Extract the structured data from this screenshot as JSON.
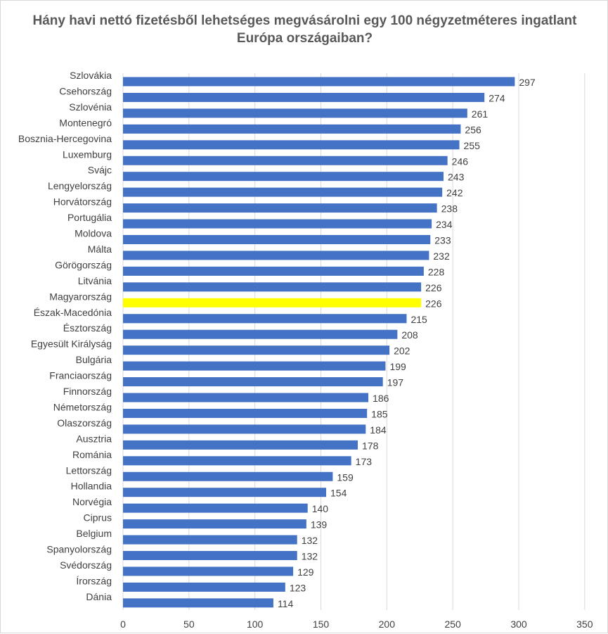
{
  "chart_data": {
    "type": "bar",
    "orientation": "horizontal",
    "title": "Hány havi nettó fizetésből lehetséges megvásárolni egy 100 négyzetméteres ingatlant Európa országaiban?",
    "categories": [
      "Szlovákia",
      "Csehország",
      "Szlovénia",
      "Montenegró",
      "Bosznia-Hercegovina",
      "Luxemburg",
      "Svájc",
      "Lengyelország",
      "Horvátország",
      "Portugália",
      "Moldova",
      "Málta",
      "Görögország",
      "Litvánia",
      "Magyarország",
      "Észak-Macedónia",
      "Észtország",
      "Egyesült Királyság",
      "Bulgária",
      "Franciaország",
      "Finnország",
      "Németország",
      "Olaszország",
      "Ausztria",
      "Románia",
      "Lettország",
      "Hollandia",
      "Norvégia",
      "Ciprus",
      "Belgium",
      "Spanyolország",
      "Svédország",
      "Írország",
      "Dánia"
    ],
    "values": [
      297,
      274,
      261,
      256,
      255,
      246,
      243,
      242,
      238,
      234,
      233,
      232,
      228,
      226,
      226,
      215,
      208,
      202,
      199,
      197,
      186,
      185,
      184,
      178,
      173,
      159,
      154,
      140,
      139,
      132,
      132,
      129,
      123,
      114
    ],
    "xlim": [
      0,
      350
    ],
    "x_ticks": [
      0,
      50,
      100,
      150,
      200,
      250,
      300,
      350
    ],
    "grid": "vertical",
    "legend": "none",
    "colors": {
      "bar": "#4472c4",
      "highlight": "#ffff00",
      "grid": "#d9d9d9"
    },
    "highlight_category": "Magyarország"
  }
}
